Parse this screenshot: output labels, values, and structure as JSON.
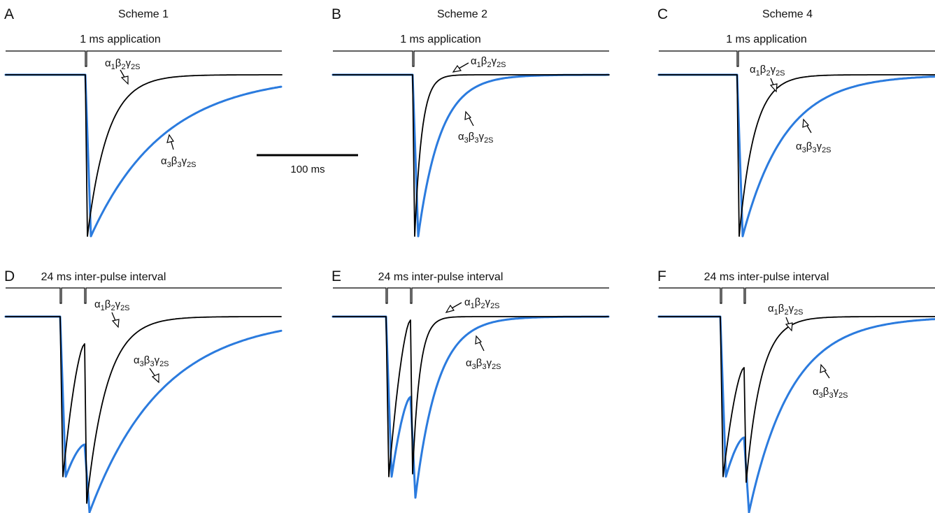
{
  "colors": {
    "alpha1": "#000000",
    "alpha3": "#2b7bde",
    "stimulus": "#000000"
  },
  "scale_bar": {
    "label": "100 ms",
    "value_ms": 100
  },
  "panels": [
    {
      "id": "A",
      "label": "A",
      "title": "Scheme 1",
      "protocol": "1 ms application",
      "pulses": 1,
      "alpha1": {
        "decay_ms": 20
      },
      "alpha3": {
        "decay_ms": 72
      },
      "trace_labels": {
        "alpha1": {
          "sym": "α",
          "s1": "1",
          "b": "β",
          "s2": "2",
          "g": "γ",
          "s3": "2S"
        },
        "alpha3": {
          "sym": "α",
          "s1": "3",
          "b": "β",
          "s2": "3",
          "g": "γ",
          "s3": "2S"
        }
      }
    },
    {
      "id": "B",
      "label": "B",
      "title": "Scheme 2",
      "protocol": "1 ms application",
      "pulses": 1,
      "alpha1": {
        "decay_ms": 7
      },
      "alpha3": {
        "decay_ms": 22
      },
      "trace_labels": {
        "alpha1": {
          "sym": "α",
          "s1": "1",
          "b": "β",
          "s2": "2",
          "g": "γ",
          "s3": "2S"
        },
        "alpha3": {
          "sym": "α",
          "s1": "3",
          "b": "β",
          "s2": "3",
          "g": "γ",
          "s3": "2S"
        }
      }
    },
    {
      "id": "C",
      "label": "C",
      "title": "Scheme 4",
      "protocol": "1 ms application",
      "pulses": 1,
      "alpha1": {
        "decay_ms": 15
      },
      "alpha3": {
        "decay_ms": 42
      },
      "trace_labels": {
        "alpha1": {
          "sym": "α",
          "s1": "1",
          "b": "β",
          "s2": "2",
          "g": "γ",
          "s3": "2S"
        },
        "alpha3": {
          "sym": "α",
          "s1": "3",
          "b": "β",
          "s2": "3",
          "g": "γ",
          "s3": "2S"
        }
      }
    },
    {
      "id": "D",
      "label": "D",
      "title": "",
      "protocol": "24 ms inter-pulse interval",
      "pulses": 2,
      "alpha1": {
        "decay_ms": 20
      },
      "alpha3": {
        "decay_ms": 72
      },
      "trace_labels": {
        "alpha1": {
          "sym": "α",
          "s1": "1",
          "b": "β",
          "s2": "2",
          "g": "γ",
          "s3": "2S"
        },
        "alpha3": {
          "sym": "α",
          "s1": "3",
          "b": "β",
          "s2": "3",
          "g": "γ",
          "s3": "2S"
        }
      }
    },
    {
      "id": "E",
      "label": "E",
      "title": "",
      "protocol": "24 ms inter-pulse interval",
      "pulses": 2,
      "alpha1": {
        "decay_ms": 7
      },
      "alpha3": {
        "decay_ms": 22
      },
      "trace_labels": {
        "alpha1": {
          "sym": "α",
          "s1": "1",
          "b": "β",
          "s2": "2",
          "g": "γ",
          "s3": "2S"
        },
        "alpha3": {
          "sym": "α",
          "s1": "3",
          "b": "β",
          "s2": "3",
          "g": "γ",
          "s3": "2S"
        }
      }
    },
    {
      "id": "F",
      "label": "F",
      "title": "",
      "protocol": "24 ms inter-pulse interval",
      "pulses": 2,
      "alpha1": {
        "decay_ms": 15
      },
      "alpha3": {
        "decay_ms": 42
      },
      "trace_labels": {
        "alpha1": {
          "sym": "α",
          "s1": "1",
          "b": "β",
          "s2": "2",
          "g": "γ",
          "s3": "2S"
        },
        "alpha3": {
          "sym": "α",
          "s1": "3",
          "b": "β",
          "s2": "3",
          "g": "γ",
          "s3": "2S"
        }
      }
    }
  ]
}
